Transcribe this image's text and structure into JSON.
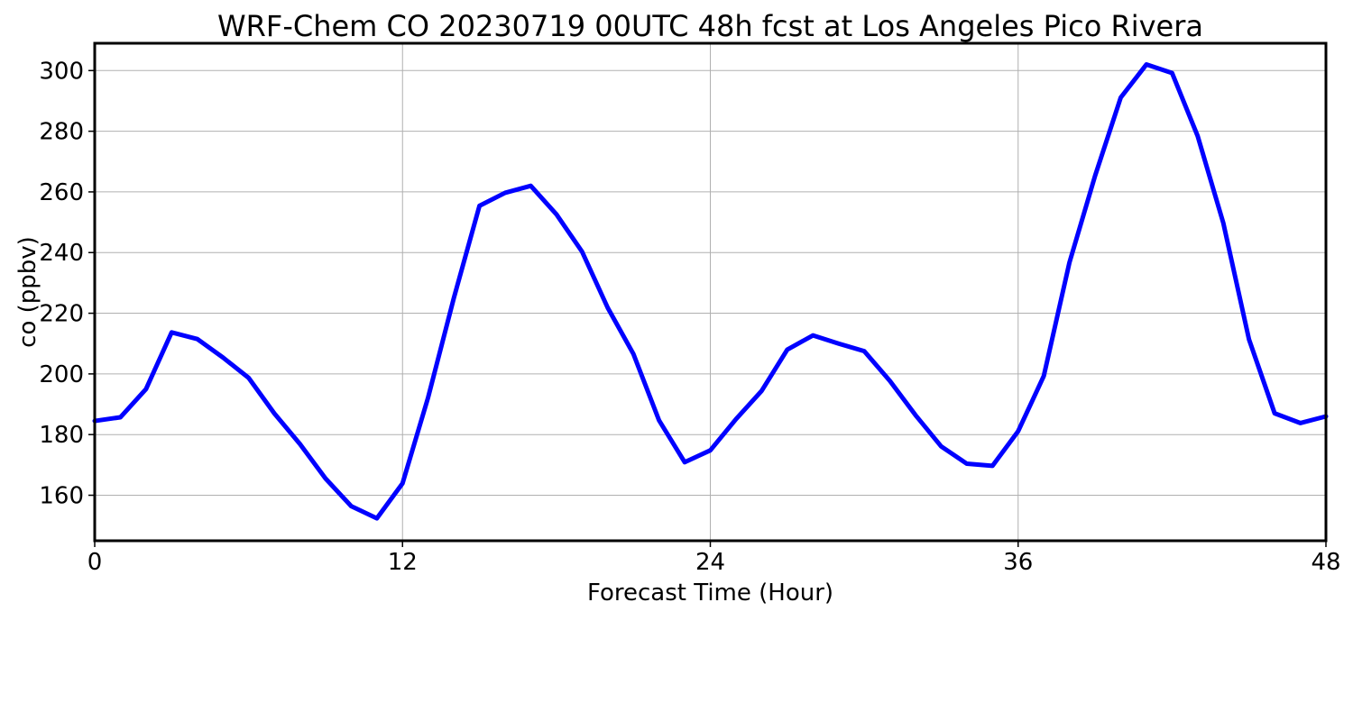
{
  "chart_data": {
    "type": "line",
    "title": "WRF-Chem CO  20230719 00UTC 48h fcst at Los Angeles Pico Rivera",
    "xlabel": "Forecast Time (Hour)",
    "ylabel": "co  (ppbv)",
    "xlim": [
      0,
      48
    ],
    "ylim": [
      145,
      309
    ],
    "xticks": [
      0,
      12,
      24,
      36,
      48
    ],
    "yticks": [
      160,
      180,
      200,
      220,
      240,
      260,
      280,
      300
    ],
    "grid": true,
    "series_color": "#0000ff",
    "x": [
      0,
      1,
      2,
      3,
      4,
      5,
      6,
      7,
      8,
      9,
      10,
      11,
      12,
      13,
      14,
      15,
      16,
      17,
      18,
      19,
      20,
      21,
      22,
      23,
      24,
      25,
      26,
      27,
      28,
      29,
      30,
      31,
      32,
      33,
      34,
      35,
      36,
      37,
      38,
      39,
      40,
      41,
      42,
      43,
      44,
      45,
      46,
      47,
      48
    ],
    "series": [
      {
        "values": [
          184.5,
          185.7,
          195.0,
          213.7,
          211.5,
          205.4,
          198.7,
          187.0,
          176.9,
          165.5,
          156.4,
          152.4,
          163.9,
          192.3,
          225.0,
          255.4,
          259.7,
          262.0,
          252.6,
          240.3,
          221.8,
          206.6,
          184.7,
          170.9,
          174.8,
          185.1,
          194.4,
          208.0,
          212.7,
          210.0,
          207.5,
          197.7,
          186.4,
          176.1,
          170.4,
          169.7,
          181.1,
          199.3,
          236.7,
          265.3,
          291.1,
          302.0,
          299.2,
          278.4,
          249.7,
          211.4,
          187.0,
          183.8,
          186.0
        ]
      }
    ]
  }
}
